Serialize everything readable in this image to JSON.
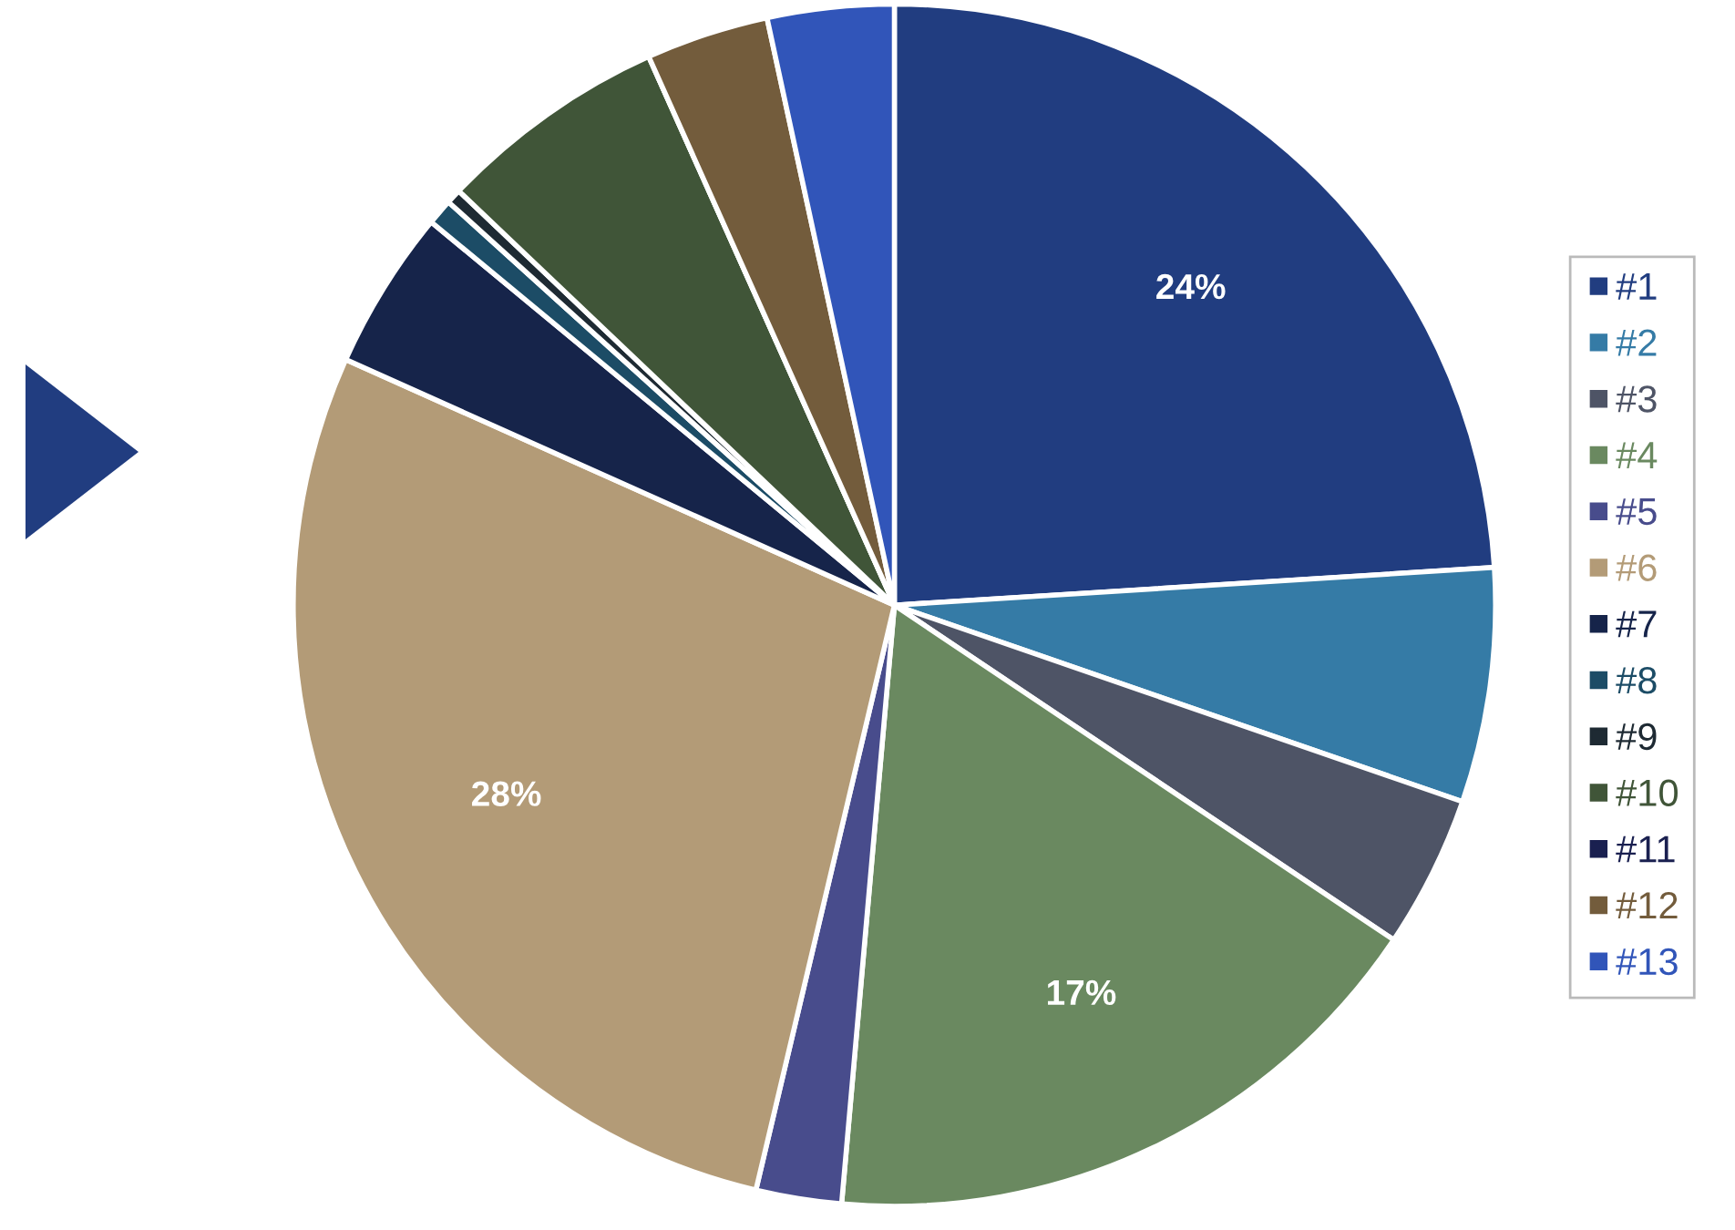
{
  "chart_data": {
    "type": "pie",
    "categories": [
      "#1",
      "#2",
      "#3",
      "#4",
      "#5",
      "#6",
      "#7",
      "#8",
      "#9",
      "#10",
      "#11",
      "#12",
      "#13"
    ],
    "values": [
      24,
      6.3,
      4.1,
      17,
      2.3,
      28,
      4.3,
      0.7,
      0.4,
      6.2,
      0,
      3.3,
      3.4
    ],
    "colors": [
      "#213d80",
      "#357ba6",
      "#4e5466",
      "#6a8960",
      "#484c8c",
      "#b39b77",
      "#16244a",
      "#1c4c66",
      "#1e2a33",
      "#405538",
      "#1a2050",
      "#735c3c",
      "#3155b9"
    ],
    "value_labels": [
      "24%",
      null,
      null,
      "17%",
      null,
      "28%",
      null,
      null,
      null,
      null,
      null,
      null,
      null
    ],
    "legend": "right"
  }
}
